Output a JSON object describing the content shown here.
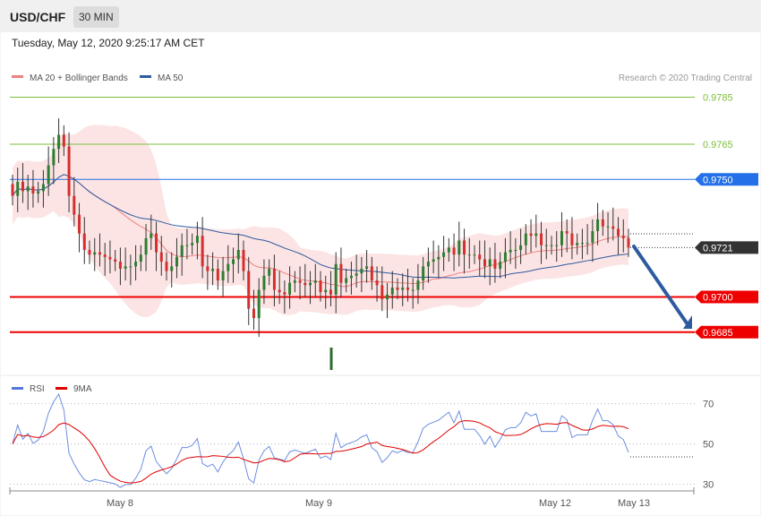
{
  "header": {
    "symbol": "USD/CHF",
    "timeframe": "30 MIN"
  },
  "timestamp": "Tuesday, May 12, 2020 9:25:17 AM CET",
  "copyright": "Research © 2020 Trading Central",
  "legend_main": [
    {
      "name": "MA 20 + Bollinger Bands",
      "color": "#f08080"
    },
    {
      "name": "MA 50",
      "color": "#2e5aa0"
    }
  ],
  "legend_rsi": [
    {
      "name": "RSI",
      "color": "#5577dd"
    },
    {
      "name": "9MA",
      "color": "#e00000"
    }
  ],
  "chart_data": {
    "type": "candlestick",
    "price_ylim": [
      0.9667,
      0.9797
    ],
    "levels": [
      {
        "value": 0.9785,
        "label": "0.9785",
        "color": "#7cbf3a",
        "style": "thin",
        "tag": false
      },
      {
        "value": 0.9765,
        "label": "0.9765",
        "color": "#7cbf3a",
        "style": "thin",
        "tag": false
      },
      {
        "value": 0.975,
        "label": "0.9750",
        "color": "#2470e8",
        "style": "thin",
        "tag": true
      },
      {
        "value": 0.9721,
        "label": "0.9721",
        "color": "#333333",
        "style": "dotted",
        "tag": true
      },
      {
        "value": 0.97,
        "label": "0.9700",
        "color": "#ee0000",
        "style": "thick",
        "tag": true
      },
      {
        "value": 0.9685,
        "label": "0.9685",
        "color": "#ee0000",
        "style": "thick",
        "tag": true
      }
    ],
    "candles_close": [
      0.9743,
      0.9749,
      0.9745,
      0.9747,
      0.9744,
      0.9745,
      0.9748,
      0.9756,
      0.9763,
      0.9769,
      0.9764,
      0.9743,
      0.9735,
      0.9727,
      0.972,
      0.9718,
      0.9719,
      0.9718,
      0.9717,
      0.9716,
      0.9715,
      0.9712,
      0.9713,
      0.9713,
      0.9715,
      0.9718,
      0.9725,
      0.9727,
      0.9719,
      0.9715,
      0.9711,
      0.9713,
      0.9717,
      0.9722,
      0.9722,
      0.9723,
      0.9726,
      0.9713,
      0.9711,
      0.9712,
      0.9707,
      0.9711,
      0.9714,
      0.9716,
      0.972,
      0.9711,
      0.9695,
      0.9691,
      0.9703,
      0.9709,
      0.9712,
      0.9703,
      0.9702,
      0.9701,
      0.9706,
      0.9707,
      0.9706,
      0.9705,
      0.9706,
      0.9707,
      0.9702,
      0.9703,
      0.9701,
      0.9714,
      0.9706,
      0.9708,
      0.9709,
      0.971,
      0.9712,
      0.9713,
      0.9707,
      0.9705,
      0.9699,
      0.9701,
      0.9704,
      0.9703,
      0.9704,
      0.9703,
      0.9703,
      0.9707,
      0.9713,
      0.9715,
      0.9716,
      0.9717,
      0.9719,
      0.9721,
      0.9718,
      0.9724,
      0.9718,
      0.9718,
      0.9718,
      0.9716,
      0.9713,
      0.9716,
      0.9712,
      0.9715,
      0.9719,
      0.972,
      0.972,
      0.9722,
      0.9727,
      0.9726,
      0.9727,
      0.9722,
      0.9722,
      0.9722,
      0.9722,
      0.9728,
      0.9727,
      0.9722,
      0.9723,
      0.9723,
      0.9723,
      0.9728,
      0.9733,
      0.973,
      0.973,
      0.9729,
      0.9726,
      0.9725,
      0.9721
    ],
    "rsi_ylim": [
      20,
      80
    ],
    "rsi_ticks": [
      70,
      50,
      30
    ],
    "x_ticks": [
      "May 8",
      "May 9",
      "May 12",
      "May 13"
    ]
  }
}
